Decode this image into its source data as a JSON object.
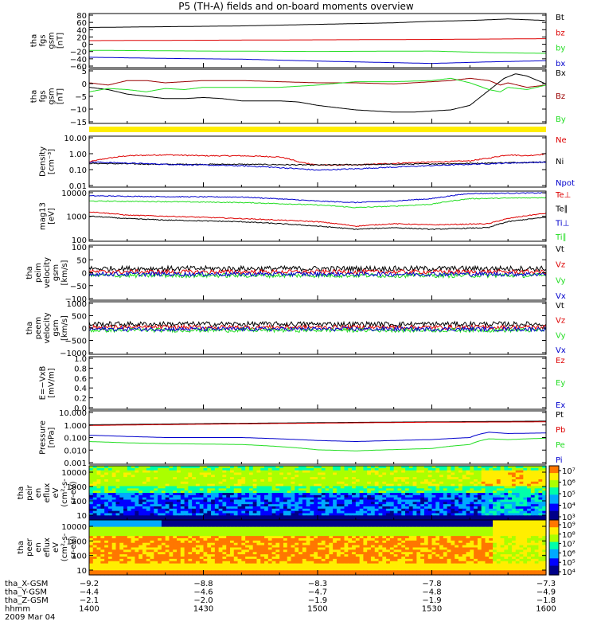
{
  "title": "P5 (TH-A) fields and on-board moments overview",
  "colors": {
    "black": "#000000",
    "red": "#dd0000",
    "green": "#22dd22",
    "blue": "#0000cc",
    "darkred": "#990000",
    "yellow": "#ffee00"
  },
  "chart_data": [
    {
      "type": "line",
      "id": "fgs_gsm",
      "ylabel_lines": [
        "tha",
        "fgs",
        "gsm",
        "[nT]"
      ],
      "yticks": [
        "80",
        "60",
        "40",
        "20",
        "0",
        "−20",
        "−40",
        "−60"
      ],
      "ylim": [
        -60,
        80
      ],
      "log": false,
      "legend": [
        {
          "label": "Bt",
          "color": "#000000"
        },
        {
          "label": "bz",
          "color": "#dd0000"
        },
        {
          "label": "by",
          "color": "#22dd22"
        },
        {
          "label": "bx",
          "color": "#0000cc"
        }
      ],
      "series": [
        {
          "color": "#000000",
          "x": [
            1400,
            1420,
            1440,
            1500,
            1520,
            1530,
            1540,
            1550,
            1560,
            1600
          ],
          "y": [
            44,
            46,
            48,
            52,
            56,
            60,
            62,
            66,
            62,
            64
          ]
        },
        {
          "color": "#dd0000",
          "x": [
            1400,
            1430,
            1500,
            1530,
            1600
          ],
          "y": [
            10,
            11,
            12,
            13,
            15
          ]
        },
        {
          "color": "#22dd22",
          "x": [
            1400,
            1430,
            1500,
            1530,
            1545,
            1600
          ],
          "y": [
            -15,
            -17,
            -18,
            -17,
            -21,
            -23
          ]
        },
        {
          "color": "#0000cc",
          "x": [
            1400,
            1420,
            1440,
            1500,
            1520,
            1530,
            1545,
            1600
          ],
          "y": [
            -33,
            -36,
            -38,
            -43,
            -47,
            -49,
            -45,
            -42
          ]
        }
      ]
    },
    {
      "type": "line",
      "id": "fgs_gsm_bxbz",
      "ylabel_lines": [
        "tha",
        "fgs",
        "gsm",
        "[nT]"
      ],
      "yticks": [
        "5",
        "0",
        "−5",
        "−10",
        "−15"
      ],
      "ylim": [
        -17,
        7
      ],
      "log": false,
      "legend": [
        {
          "label": "Bx",
          "color": "#000000"
        },
        {
          "label": "Bz",
          "color": "#990000"
        },
        {
          "label": "By",
          "color": "#22dd22"
        }
      ],
      "series": [
        {
          "color": "#000000",
          "x": [
            1400,
            1405,
            1410,
            1415,
            1420,
            1425,
            1430,
            1435,
            1440,
            1445,
            1450,
            1455,
            1500,
            1505,
            1510,
            1515,
            1520,
            1525,
            1530,
            1535,
            1540,
            1543,
            1546,
            1549,
            1552,
            1555,
            1600
          ],
          "y": [
            -1,
            -2,
            -4,
            -5,
            -6,
            -6,
            -5.5,
            -6,
            -7,
            -7,
            -7,
            -7.5,
            -9,
            -10,
            -11,
            -11.5,
            -12,
            -12,
            -11.5,
            -11,
            -9,
            -5,
            -1,
            3,
            5,
            4,
            0.5
          ]
        },
        {
          "color": "#990000",
          "x": [
            1400,
            1405,
            1410,
            1415,
            1420,
            1430,
            1440,
            1450,
            1500,
            1510,
            1520,
            1530,
            1535,
            1540,
            1545,
            1548,
            1550,
            1555,
            1600
          ],
          "y": [
            1,
            0,
            2,
            2,
            1,
            2,
            2,
            1.5,
            1,
            1,
            0.5,
            1.5,
            2,
            3,
            2,
            0,
            1,
            -1,
            0
          ]
        },
        {
          "color": "#22dd22",
          "x": [
            1400,
            1405,
            1410,
            1415,
            1420,
            1425,
            1430,
            1440,
            1450,
            1500,
            1510,
            1520,
            1530,
            1535,
            1540,
            1545,
            1548,
            1550,
            1555,
            1600
          ],
          "y": [
            -3,
            -1.5,
            -2,
            -3,
            -1.5,
            -2,
            -1,
            -1,
            -1,
            0,
            1.5,
            1.5,
            2,
            3,
            1,
            -2,
            -3,
            -1,
            -2,
            0
          ]
        }
      ]
    },
    {
      "type": "line",
      "id": "density",
      "ylabel_lines": [
        "Density",
        "[cm⁻³]"
      ],
      "yticks": [
        "10.00",
        "1.00",
        "0.10",
        "0.01"
      ],
      "ylim": [
        0.01,
        10
      ],
      "log": true,
      "legend": [
        {
          "label": "Ne",
          "color": "#dd0000"
        },
        {
          "label": "Ni",
          "color": "#000000"
        },
        {
          "label": "Npot",
          "color": "#0000cc"
        }
      ],
      "series": [
        {
          "color": "#dd0000",
          "x": [
            1400,
            1405,
            1410,
            1420,
            1430,
            1440,
            1450,
            1455,
            1500,
            1510,
            1520,
            1530,
            1540,
            1545,
            1550,
            1555,
            1600
          ],
          "y": [
            0.3,
            0.5,
            0.7,
            0.8,
            0.7,
            0.7,
            0.6,
            0.3,
            0.2,
            0.2,
            0.25,
            0.3,
            0.35,
            0.5,
            0.8,
            0.7,
            0.9
          ]
        },
        {
          "color": "#000000",
          "x": [
            1400,
            1420,
            1440,
            1500,
            1520,
            1540,
            1600
          ],
          "y": [
            0.25,
            0.22,
            0.22,
            0.2,
            0.22,
            0.25,
            0.3
          ]
        },
        {
          "color": "#0000cc",
          "x": [
            1400,
            1420,
            1440,
            1500,
            1510,
            1520,
            1540,
            1600
          ],
          "y": [
            0.3,
            0.22,
            0.18,
            0.1,
            0.12,
            0.15,
            0.22,
            0.3
          ]
        }
      ]
    },
    {
      "type": "line",
      "id": "temperature",
      "ylabel_lines": [
        "mag13",
        "[eV]"
      ],
      "yticks": [
        "10000",
        "1000",
        "100"
      ],
      "ylim": [
        100,
        10000
      ],
      "log": true,
      "legend": [
        {
          "label": "Te⊥",
          "color": "#dd0000"
        },
        {
          "label": "Te∥",
          "color": "#000000"
        },
        {
          "label": "Ti⊥",
          "color": "#0000cc"
        },
        {
          "label": "Ti∥",
          "color": "#22dd22"
        }
      ],
      "series": [
        {
          "color": "#0000cc",
          "x": [
            1400,
            1420,
            1440,
            1500,
            1510,
            1520,
            1530,
            1540,
            1600
          ],
          "y": [
            6500,
            6000,
            5800,
            4000,
            3500,
            4000,
            5000,
            8000,
            8500
          ]
        },
        {
          "color": "#22dd22",
          "x": [
            1400,
            1420,
            1440,
            1500,
            1510,
            1520,
            1530,
            1540,
            1600
          ],
          "y": [
            4000,
            3800,
            3500,
            2800,
            2200,
            2500,
            3000,
            5000,
            5500
          ]
        },
        {
          "color": "#dd0000",
          "x": [
            1400,
            1410,
            1420,
            1440,
            1500,
            1510,
            1520,
            1530,
            1545,
            1550,
            1600
          ],
          "y": [
            1500,
            1100,
            1000,
            800,
            600,
            400,
            500,
            450,
            500,
            800,
            1300
          ]
        },
        {
          "color": "#000000",
          "x": [
            1400,
            1410,
            1420,
            1440,
            1500,
            1510,
            1520,
            1530,
            1545,
            1550,
            1600
          ],
          "y": [
            1000,
            800,
            700,
            600,
            400,
            300,
            350,
            300,
            350,
            600,
            900
          ]
        }
      ]
    },
    {
      "type": "line",
      "id": "peim_velocity",
      "ylabel_lines": [
        "tha",
        "peim",
        "velocity",
        "gsm",
        "[km/s]"
      ],
      "yticks": [
        "100",
        "50",
        "0",
        "−50",
        "−100"
      ],
      "ylim": [
        -100,
        100
      ],
      "log": false,
      "legend": [
        {
          "label": "Vt",
          "color": "#000000"
        },
        {
          "label": "Vz",
          "color": "#dd0000"
        },
        {
          "label": "Vy",
          "color": "#22dd22"
        },
        {
          "label": "Vx",
          "color": "#0000cc"
        }
      ],
      "series": [
        {
          "color": "#000000",
          "x": [
            1400,
            1600
          ],
          "y": [
            15,
            15
          ]
        },
        {
          "color": "#dd0000",
          "x": [
            1400,
            1600
          ],
          "y": [
            3,
            3
          ]
        },
        {
          "color": "#22dd22",
          "x": [
            1400,
            1600
          ],
          "y": [
            -10,
            -10
          ]
        },
        {
          "color": "#0000cc",
          "x": [
            1400,
            1600
          ],
          "y": [
            -5,
            -5
          ]
        }
      ]
    },
    {
      "type": "line",
      "id": "peem_velocity",
      "ylabel_lines": [
        "tha",
        "peem",
        "velocity",
        "gsm",
        "[km/s]"
      ],
      "yticks": [
        "1000",
        "500",
        "0",
        "−500",
        "−1000"
      ],
      "ylim": [
        -1000,
        1000
      ],
      "log": false,
      "legend": [
        {
          "label": "Vt",
          "color": "#000000"
        },
        {
          "label": "Vz",
          "color": "#dd0000"
        },
        {
          "label": "Vy",
          "color": "#22dd22"
        },
        {
          "label": "Vx",
          "color": "#0000cc"
        }
      ],
      "series": [
        {
          "color": "#000000",
          "x": [
            1400,
            1600
          ],
          "y": [
            150,
            150
          ]
        },
        {
          "color": "#dd0000",
          "x": [
            1400,
            1600
          ],
          "y": [
            30,
            30
          ]
        },
        {
          "color": "#22dd22",
          "x": [
            1400,
            1600
          ],
          "y": [
            -80,
            -80
          ]
        },
        {
          "color": "#0000cc",
          "x": [
            1400,
            1600
          ],
          "y": [
            -40,
            -40
          ]
        }
      ]
    },
    {
      "type": "line",
      "id": "e_vxb",
      "ylabel_lines": [
        "E=−VxB",
        "[mV/m]"
      ],
      "yticks": [
        "1.0",
        "0.8",
        "0.6",
        "0.4",
        "0.2",
        "0.0"
      ],
      "ylim": [
        0,
        1
      ],
      "log": false,
      "legend": [
        {
          "label": "Ez",
          "color": "#dd0000"
        },
        {
          "label": "Ey",
          "color": "#22dd22"
        },
        {
          "label": "Ex",
          "color": "#0000cc"
        }
      ],
      "series": []
    },
    {
      "type": "line",
      "id": "pressure",
      "ylabel_lines": [
        "Pressure",
        "[nPa]"
      ],
      "yticks": [
        "10.000",
        "1.000",
        "0.100",
        "0.010",
        "0.001"
      ],
      "ylim": [
        0.001,
        10
      ],
      "log": true,
      "legend": [
        {
          "label": "Pt",
          "color": "#000000"
        },
        {
          "label": "Pb",
          "color": "#dd0000"
        },
        {
          "label": "Pe",
          "color": "#22dd22"
        },
        {
          "label": "Pi",
          "color": "#0000cc"
        }
      ],
      "series": [
        {
          "color": "#000000",
          "x": [
            1400,
            1430,
            1500,
            1530,
            1600
          ],
          "y": [
            0.9,
            1.1,
            1.3,
            1.5,
            1.7
          ]
        },
        {
          "color": "#dd0000",
          "x": [
            1400,
            1430,
            1500,
            1530,
            1600
          ],
          "y": [
            0.8,
            1.0,
            1.2,
            1.4,
            1.5
          ]
        },
        {
          "color": "#0000cc",
          "x": [
            1400,
            1410,
            1420,
            1440,
            1500,
            1510,
            1530,
            1540,
            1545,
            1550,
            1600
          ],
          "y": [
            0.15,
            0.12,
            0.1,
            0.1,
            0.06,
            0.05,
            0.07,
            0.1,
            0.25,
            0.2,
            0.22
          ]
        },
        {
          "color": "#22dd22",
          "x": [
            1400,
            1410,
            1420,
            1440,
            1500,
            1510,
            1530,
            1540,
            1545,
            1550,
            1600
          ],
          "y": [
            0.05,
            0.04,
            0.035,
            0.03,
            0.012,
            0.01,
            0.015,
            0.03,
            0.08,
            0.07,
            0.09
          ]
        }
      ]
    },
    {
      "type": "heatmap",
      "id": "peir_en_eflux",
      "ylabel_lines": [
        "tha",
        "peir",
        "en",
        "eflux",
        "eV",
        "(cm²-s-",
        "sr-eV)"
      ],
      "yticks": [
        "10000",
        "1000",
        "100",
        "10"
      ],
      "ylim": [
        10,
        20000
      ],
      "log": true,
      "colorbar_ticks": [
        "10⁷",
        "10⁶",
        "10⁵",
        "10⁴",
        "10³"
      ]
    },
    {
      "type": "heatmap",
      "id": "peer_en_eflux",
      "ylabel_lines": [
        "tha",
        "peer",
        "en",
        "eflux",
        "eV",
        "(cm²-s-",
        "sr-eV)"
      ],
      "yticks": [
        "10000",
        "1000",
        "100",
        "10"
      ],
      "ylim": [
        8,
        20000
      ],
      "log": true,
      "colorbar_ticks": [
        "10⁹",
        "10⁸",
        "10⁷",
        "10⁶",
        "10⁵",
        "10⁴"
      ]
    }
  ],
  "xaxis": {
    "rows": [
      {
        "label": "tha_X-GSM",
        "values": [
          "−9.2",
          "−8.8",
          "−8.3",
          "−7.8",
          "−7.3"
        ]
      },
      {
        "label": "tha_Y-GSM",
        "values": [
          "−4.4",
          "−4.6",
          "−4.7",
          "−4.8",
          "−4.9"
        ]
      },
      {
        "label": "tha_Z-GSM",
        "values": [
          "−2.1",
          "−2.0",
          "−1.9",
          "−1.9",
          "−1.8"
        ]
      },
      {
        "label": "hhmm",
        "values": [
          "1400",
          "1430",
          "1500",
          "1530",
          "1600"
        ]
      }
    ],
    "date": "2009 Mar 04"
  }
}
